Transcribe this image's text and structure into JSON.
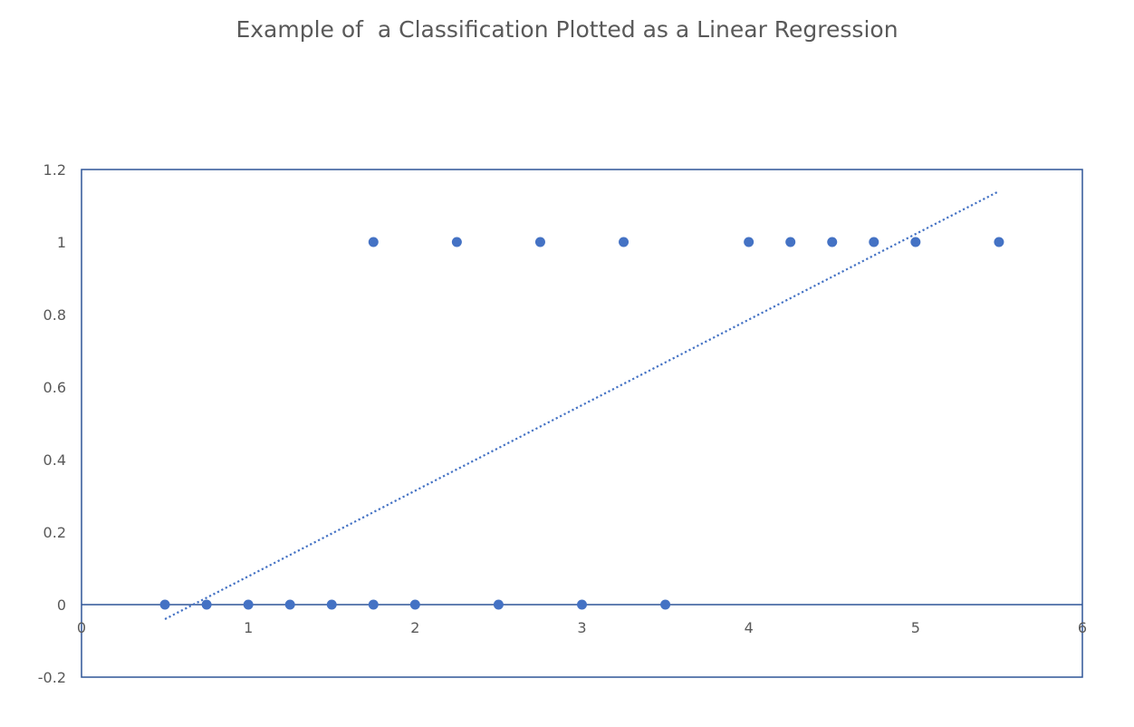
{
  "chart_data": {
    "type": "scatter",
    "title": "Example of  a Classification Plotted as a Linear Regression",
    "xlabel": "",
    "ylabel": "",
    "xlim": [
      0,
      6
    ],
    "ylim": [
      -0.2,
      1.2
    ],
    "x_ticks": [
      0,
      1,
      2,
      3,
      4,
      5,
      6
    ],
    "y_ticks": [
      -0.2,
      0,
      0.2,
      0.4,
      0.6,
      0.8,
      1,
      1.2
    ],
    "x_tick_labels": [
      "0",
      "1",
      "2",
      "3",
      "4",
      "5",
      "6"
    ],
    "y_tick_labels": [
      "-0.2",
      "0",
      "0.2",
      "0.4",
      "0.6",
      "0.8",
      "1",
      "1.2"
    ],
    "grid": false,
    "legend": "none",
    "series": [
      {
        "points": [
          {
            "x": 0.5,
            "y": 0
          },
          {
            "x": 0.75,
            "y": 0
          },
          {
            "x": 1.0,
            "y": 0
          },
          {
            "x": 1.25,
            "y": 0
          },
          {
            "x": 1.5,
            "y": 0
          },
          {
            "x": 1.75,
            "y": 0
          },
          {
            "x": 2.0,
            "y": 0
          },
          {
            "x": 2.5,
            "y": 0
          },
          {
            "x": 3.0,
            "y": 0
          },
          {
            "x": 3.5,
            "y": 0
          },
          {
            "x": 1.75,
            "y": 1
          },
          {
            "x": 2.25,
            "y": 1
          },
          {
            "x": 2.75,
            "y": 1
          },
          {
            "x": 3.25,
            "y": 1
          },
          {
            "x": 4.0,
            "y": 1
          },
          {
            "x": 4.25,
            "y": 1
          },
          {
            "x": 4.5,
            "y": 1
          },
          {
            "x": 4.75,
            "y": 1
          },
          {
            "x": 5.0,
            "y": 1
          },
          {
            "x": 5.5,
            "y": 1
          }
        ]
      }
    ],
    "trendline": {
      "type": "linear",
      "style": "dotted",
      "x_start": 0.5,
      "x_end": 5.5,
      "y_start": -0.04,
      "y_end": 1.14
    },
    "colors": {
      "marker": "#4472C4",
      "trendline": "#4472C4",
      "axis": "#2F5597",
      "frame": "#2F5597",
      "text": "#595959"
    }
  }
}
